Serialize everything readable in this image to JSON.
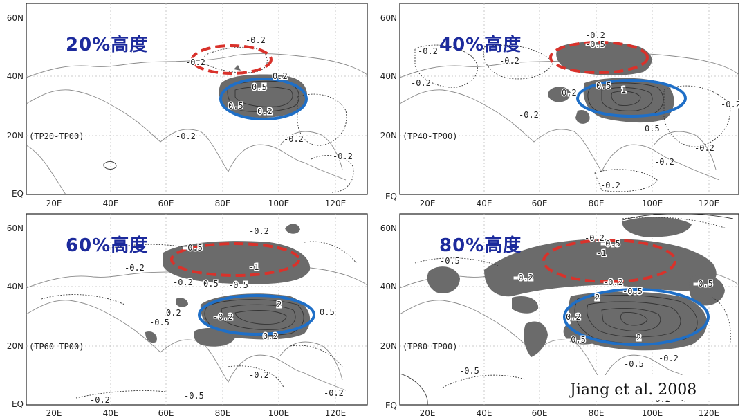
{
  "figure": {
    "citation": "Jiang et al. 2008",
    "colors": {
      "title": "#1c2a9c",
      "shading": "#6b6b6b",
      "red_ellipse": "#d9322b",
      "blue_ellipse": "#1f6fc7"
    },
    "x_ticks": [
      "20E",
      "40E",
      "60E",
      "80E",
      "100E",
      "120E"
    ],
    "y_ticks": [
      "60N",
      "40N",
      "20N",
      "EQ"
    ]
  },
  "panels": [
    {
      "title": "20%高度",
      "experiment": "(TP20-TP00)",
      "labels": [
        "-0.2",
        "-0.2",
        "0.2",
        "0.5",
        "0.5",
        "0.2",
        "-0.2",
        "-0.2",
        "-0.2"
      ]
    },
    {
      "title": "40%高度",
      "experiment": "(TP40-TP00)",
      "labels": [
        "-0.2",
        "-0.2",
        "-0.5",
        "-0.2",
        "-0.2",
        "0.2",
        "0.5",
        "1",
        "-0.2",
        "0.5",
        "-0.2",
        "-0.2",
        "-0.2",
        "-0.2"
      ]
    },
    {
      "title": "60%高度",
      "experiment": "(TP60-TP00)",
      "labels": [
        "-0.2",
        "-0.2",
        "-0.5",
        "-1",
        "-0.2",
        "-0.5",
        "-0.2",
        "0.2",
        "0.5",
        "2",
        "0.2",
        "-0.5",
        "0.5",
        "-0.2",
        "-0.2",
        "-0.5",
        "-0.2"
      ]
    },
    {
      "title": "80%高度",
      "experiment": "(TP80-TP00)",
      "labels": [
        "-0.2",
        "-0.5",
        "-0.5",
        "-1",
        "-0.2",
        "-0.2",
        "-0.5",
        "2",
        "-0.5",
        "0.2",
        "-0.5",
        "2",
        "-0.5",
        "-0.2",
        "-0.5",
        "-0.2"
      ]
    }
  ]
}
